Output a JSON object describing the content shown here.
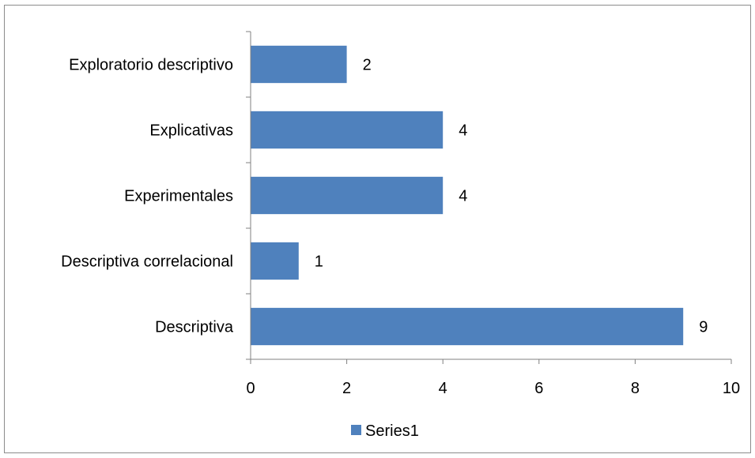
{
  "chart_data": {
    "type": "bar",
    "orientation": "horizontal",
    "categories": [
      "Exploratorio descriptivo",
      "Explicativas",
      "Experimentales",
      "Descriptiva correlacional",
      "Descriptiva"
    ],
    "series": [
      {
        "name": "Series1",
        "values": [
          2,
          4,
          4,
          1,
          9
        ]
      }
    ],
    "xlim": [
      0,
      10
    ],
    "x_ticks": [
      "0",
      "2",
      "4",
      "6",
      "8",
      "10"
    ],
    "grid": false,
    "legend_position": "bottom",
    "colors": {
      "bar": "#4f81bd",
      "axis": "#808080",
      "frame": "#8c8c8c"
    }
  }
}
